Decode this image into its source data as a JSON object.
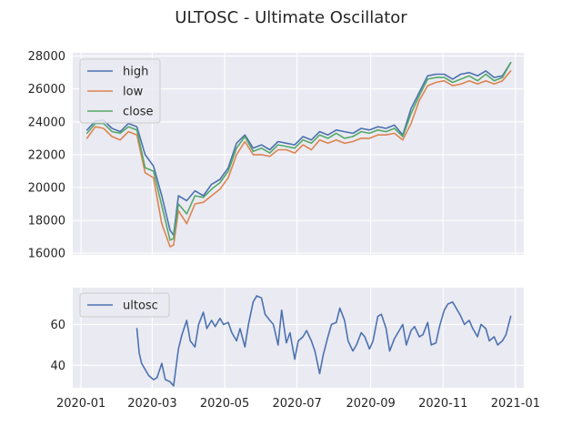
{
  "figure": {
    "title": "ULTOSC - Ultimate Oscillator"
  },
  "chart_data": [
    {
      "type": "line",
      "panel": "price",
      "ylim": [
        15900,
        28200
      ],
      "xlim": [
        "2019-12-25",
        "2021-01-08"
      ],
      "yticks": [
        16000,
        18000,
        20000,
        22000,
        24000,
        26000,
        28000
      ],
      "ytick_labels": [
        "16000",
        "18000",
        "20000",
        "22000",
        "24000",
        "26000",
        "28000"
      ],
      "grid": true,
      "legend": "top-left",
      "x": [
        "2020-01-06",
        "2020-01-13",
        "2020-01-20",
        "2020-01-27",
        "2020-02-03",
        "2020-02-10",
        "2020-02-17",
        "2020-02-24",
        "2020-03-02",
        "2020-03-09",
        "2020-03-16",
        "2020-03-19",
        "2020-03-23",
        "2020-03-30",
        "2020-04-06",
        "2020-04-13",
        "2020-04-20",
        "2020-04-27",
        "2020-05-04",
        "2020-05-11",
        "2020-05-18",
        "2020-05-25",
        "2020-06-01",
        "2020-06-08",
        "2020-06-15",
        "2020-06-22",
        "2020-06-29",
        "2020-07-06",
        "2020-07-13",
        "2020-07-20",
        "2020-07-27",
        "2020-08-03",
        "2020-08-10",
        "2020-08-17",
        "2020-08-24",
        "2020-08-31",
        "2020-09-07",
        "2020-09-14",
        "2020-09-21",
        "2020-09-28",
        "2020-10-05",
        "2020-10-12",
        "2020-10-19",
        "2020-10-26",
        "2020-11-02",
        "2020-11-09",
        "2020-11-16",
        "2020-11-23",
        "2020-11-30",
        "2020-12-07",
        "2020-12-14",
        "2020-12-21",
        "2020-12-28"
      ],
      "series": [
        {
          "name": "high",
          "color": "#4c72b0",
          "values": [
            23500,
            24050,
            24100,
            23600,
            23400,
            23900,
            23700,
            22000,
            21300,
            19500,
            17400,
            17100,
            19500,
            19200,
            19800,
            19500,
            20200,
            20500,
            21200,
            22700,
            23200,
            22400,
            22600,
            22300,
            22800,
            22700,
            22600,
            23100,
            22900,
            23400,
            23200,
            23500,
            23400,
            23300,
            23600,
            23500,
            23700,
            23600,
            23800,
            23200,
            24800,
            25800,
            26800,
            26900,
            26900,
            26600,
            26900,
            27000,
            26800,
            27100,
            26700,
            26800,
            27600
          ]
        },
        {
          "name": "low",
          "color": "#dd8452",
          "values": [
            23000,
            23700,
            23600,
            23100,
            22900,
            23400,
            23200,
            20900,
            20600,
            17800,
            16400,
            16500,
            18600,
            17800,
            19000,
            19100,
            19500,
            19900,
            20600,
            22000,
            22800,
            22000,
            22000,
            21900,
            22300,
            22300,
            22100,
            22600,
            22300,
            22900,
            22700,
            22900,
            22700,
            22800,
            23000,
            23000,
            23200,
            23200,
            23300,
            22900,
            23900,
            25300,
            26200,
            26400,
            26500,
            26200,
            26300,
            26500,
            26300,
            26500,
            26300,
            26500,
            27100
          ]
        },
        {
          "name": "close",
          "color": "#55a868",
          "values": [
            23300,
            23900,
            23900,
            23400,
            23300,
            23700,
            23500,
            21200,
            21000,
            18900,
            16800,
            16900,
            19000,
            18400,
            19500,
            19400,
            19900,
            20300,
            21000,
            22400,
            23100,
            22200,
            22400,
            22100,
            22600,
            22500,
            22400,
            22900,
            22700,
            23200,
            23000,
            23300,
            23000,
            23100,
            23400,
            23300,
            23500,
            23400,
            23600,
            23100,
            24500,
            25600,
            26600,
            26700,
            26700,
            26400,
            26600,
            26800,
            26500,
            26900,
            26500,
            26700,
            27600
          ]
        }
      ]
    },
    {
      "type": "line",
      "panel": "oscillator",
      "ylim": [
        29,
        78
      ],
      "xlim": [
        "2019-12-25",
        "2021-01-08"
      ],
      "yticks": [
        40,
        60
      ],
      "ytick_labels": [
        "40",
        "60"
      ],
      "xticks": [
        "2020-01-01",
        "2020-03-01",
        "2020-05-01",
        "2020-07-01",
        "2020-09-01",
        "2020-11-01",
        "2021-01-01"
      ],
      "xtick_labels": [
        "2020-01",
        "2020-03",
        "2020-05",
        "2020-07",
        "2020-09",
        "2020-11",
        "2021-01"
      ],
      "grid": true,
      "legend": "top-left",
      "x": [
        "2020-02-17",
        "2020-02-19",
        "2020-02-21",
        "2020-02-24",
        "2020-02-27",
        "2020-03-02",
        "2020-03-05",
        "2020-03-09",
        "2020-03-12",
        "2020-03-16",
        "2020-03-19",
        "2020-03-23",
        "2020-03-26",
        "2020-03-30",
        "2020-04-02",
        "2020-04-06",
        "2020-04-09",
        "2020-04-13",
        "2020-04-16",
        "2020-04-20",
        "2020-04-23",
        "2020-04-27",
        "2020-04-30",
        "2020-05-04",
        "2020-05-07",
        "2020-05-11",
        "2020-05-14",
        "2020-05-18",
        "2020-05-21",
        "2020-05-25",
        "2020-05-28",
        "2020-06-01",
        "2020-06-04",
        "2020-06-08",
        "2020-06-11",
        "2020-06-15",
        "2020-06-18",
        "2020-06-22",
        "2020-06-25",
        "2020-06-29",
        "2020-07-02",
        "2020-07-06",
        "2020-07-09",
        "2020-07-13",
        "2020-07-16",
        "2020-07-20",
        "2020-07-23",
        "2020-07-27",
        "2020-07-30",
        "2020-08-03",
        "2020-08-06",
        "2020-08-10",
        "2020-08-13",
        "2020-08-17",
        "2020-08-20",
        "2020-08-24",
        "2020-08-27",
        "2020-08-31",
        "2020-09-03",
        "2020-09-07",
        "2020-09-10",
        "2020-09-14",
        "2020-09-17",
        "2020-09-21",
        "2020-09-24",
        "2020-09-28",
        "2020-10-01",
        "2020-10-05",
        "2020-10-08",
        "2020-10-12",
        "2020-10-15",
        "2020-10-19",
        "2020-10-22",
        "2020-10-26",
        "2020-10-29",
        "2020-11-02",
        "2020-11-05",
        "2020-11-09",
        "2020-11-12",
        "2020-11-16",
        "2020-11-19",
        "2020-11-23",
        "2020-11-26",
        "2020-11-30",
        "2020-12-03",
        "2020-12-07",
        "2020-12-10",
        "2020-12-14",
        "2020-12-17",
        "2020-12-21",
        "2020-12-24",
        "2020-12-28"
      ],
      "series": [
        {
          "name": "ultosc",
          "color": "#4c72b0",
          "values": [
            58,
            46,
            41,
            38,
            35,
            33,
            34,
            41,
            33,
            32,
            30,
            48,
            55,
            62,
            52,
            49,
            60,
            66,
            58,
            62,
            59,
            63,
            60,
            61,
            56,
            52,
            58,
            49,
            60,
            71,
            74,
            73,
            65,
            62,
            60,
            50,
            67,
            51,
            56,
            43,
            52,
            54,
            57,
            52,
            47,
            36,
            45,
            54,
            60,
            61,
            68,
            62,
            52,
            47,
            50,
            56,
            54,
            48,
            52,
            64,
            65,
            58,
            47,
            53,
            56,
            60,
            50,
            57,
            59,
            54,
            55,
            61,
            50,
            51,
            59,
            67,
            70,
            71,
            68,
            64,
            60,
            62,
            58,
            54,
            60,
            58,
            52,
            54,
            50,
            52,
            55,
            64
          ]
        }
      ]
    }
  ]
}
